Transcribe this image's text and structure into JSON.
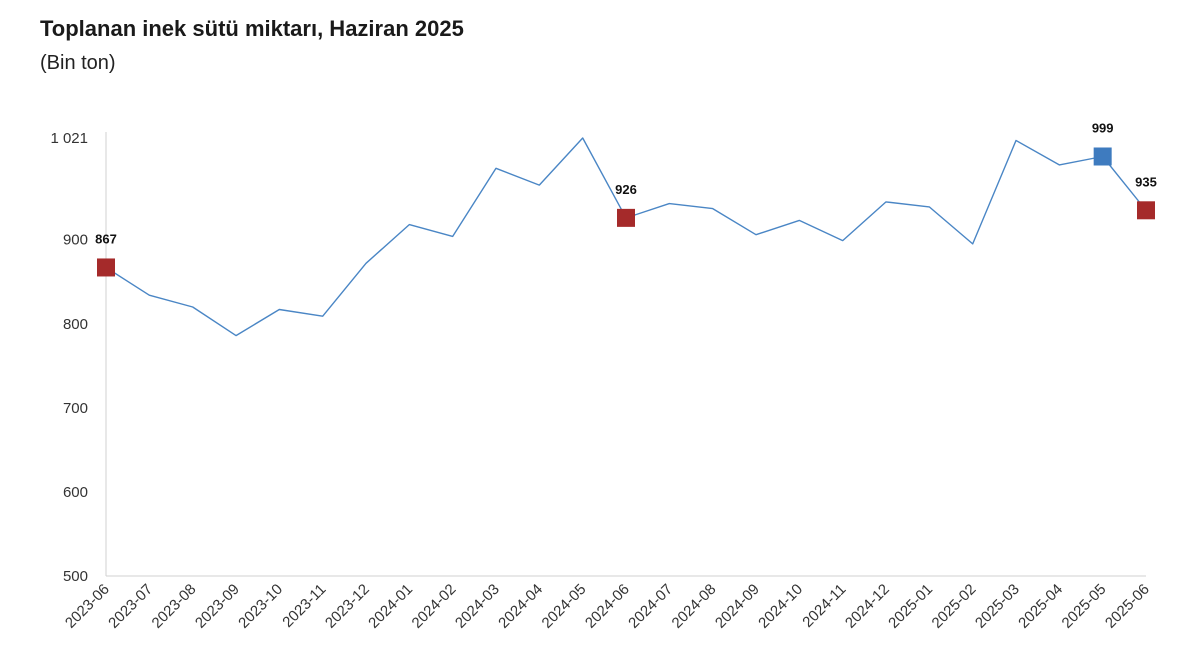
{
  "chart_data": {
    "type": "line",
    "title": "Toplanan inek sütü miktarı, Haziran 2025",
    "subtitle": "(Bin ton)",
    "x": [
      "2023-06",
      "2023-07",
      "2023-08",
      "2023-09",
      "2023-10",
      "2023-11",
      "2023-12",
      "2024-01",
      "2024-02",
      "2024-03",
      "2024-04",
      "2024-05",
      "2024-06",
      "2024-07",
      "2024-08",
      "2024-09",
      "2024-10",
      "2024-11",
      "2024-12",
      "2025-01",
      "2025-02",
      "2025-03",
      "2025-04",
      "2025-05",
      "2025-06"
    ],
    "series": [
      {
        "values": [
          867,
          834,
          820,
          786,
          817,
          809,
          872,
          918,
          904,
          985,
          965,
          1021,
          926,
          943,
          937,
          906,
          923,
          899,
          945,
          939,
          895,
          1018,
          989,
          999,
          935
        ],
        "color": "#4a86c5"
      }
    ],
    "highlights": [
      {
        "index": 0,
        "label": "867",
        "color": "#a52a2a"
      },
      {
        "index": 12,
        "label": "926",
        "color": "#a52a2a"
      },
      {
        "index": 23,
        "label": "999",
        "color": "#3e7bbf"
      },
      {
        "index": 24,
        "label": "935",
        "color": "#a52a2a"
      }
    ],
    "yticks": [
      500,
      600,
      700,
      800,
      900,
      1021
    ],
    "ytick_labels": [
      "500",
      "600",
      "700",
      "800",
      "900",
      "1 021"
    ],
    "ylim": [
      500,
      1021
    ],
    "grid": false
  }
}
